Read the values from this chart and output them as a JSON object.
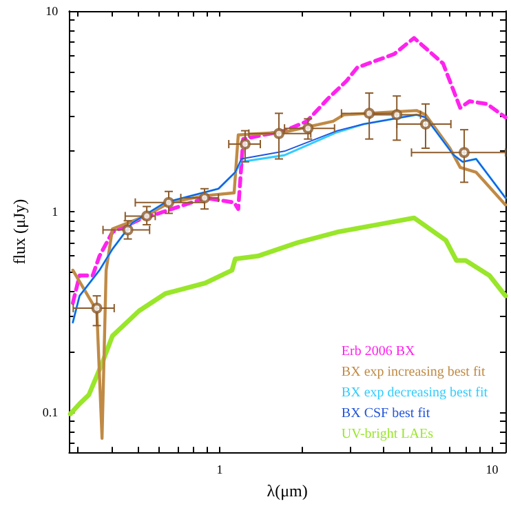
{
  "chart_data": {
    "type": "line",
    "xlabel": "λ(μm)",
    "ylabel": "flux (μJy)",
    "log": "xy",
    "grid": false,
    "legend": "bottom right",
    "xlim": [
      0.28,
      11.2
    ],
    "ylim": [
      0.063,
      10
    ],
    "xticks": [
      {
        "value": 0.3,
        "label": null
      },
      {
        "value": 0.4,
        "label": null
      },
      {
        "value": 0.5,
        "label": null
      },
      {
        "value": 0.6,
        "label": null
      },
      {
        "value": 0.7,
        "label": null
      },
      {
        "value": 0.8,
        "label": null
      },
      {
        "value": 0.9,
        "label": null
      },
      1,
      {
        "value": 2,
        "label": null
      },
      {
        "value": 3,
        "label": null
      },
      {
        "value": 4,
        "label": null
      },
      {
        "value": 5,
        "label": null
      },
      {
        "value": 6,
        "label": null
      },
      {
        "value": 7,
        "label": null
      },
      {
        "value": 8,
        "label": null
      },
      {
        "value": 9,
        "label": null
      },
      10
    ],
    "yticks": [
      {
        "value": 0.07,
        "label": null
      },
      {
        "value": 0.08,
        "label": null
      },
      {
        "value": 0.09,
        "label": null
      },
      0.1,
      {
        "value": 0.2,
        "label": null
      },
      {
        "value": 0.3,
        "label": null
      },
      {
        "value": 0.4,
        "label": null
      },
      {
        "value": 0.5,
        "label": null
      },
      {
        "value": 0.6,
        "label": null
      },
      {
        "value": 0.7,
        "label": null
      },
      {
        "value": 0.8,
        "label": null
      },
      {
        "value": 0.9,
        "label": null
      },
      1,
      {
        "value": 2,
        "label": null
      },
      {
        "value": 3,
        "label": null
      },
      {
        "value": 4,
        "label": null
      },
      {
        "value": 5,
        "label": null
      },
      {
        "value": 6,
        "label": null
      },
      {
        "value": 7,
        "label": null
      },
      {
        "value": 8,
        "label": null
      },
      {
        "value": 9,
        "label": null
      },
      10
    ],
    "series": [
      {
        "name": "UV-bright LAEs",
        "color": "#99e62a",
        "line_style": "solid",
        "x": [
          0.283,
          0.306,
          0.331,
          0.37,
          0.404,
          0.506,
          0.632,
          0.885,
          1.11,
          1.14,
          1.38,
          1.93,
          2.7,
          3.78,
          5.17,
          6.76,
          7.4,
          8.0,
          9.78,
          11.2
        ],
        "values": [
          0.098,
          0.11,
          0.122,
          0.175,
          0.24,
          0.32,
          0.39,
          0.44,
          0.51,
          0.58,
          0.6,
          0.7,
          0.79,
          0.86,
          0.93,
          0.72,
          0.57,
          0.57,
          0.48,
          0.38
        ]
      },
      {
        "name": "Erb 2006 BX",
        "color": "#ff22ee",
        "line_style": "dashed",
        "x": [
          0.289,
          0.306,
          0.342,
          0.362,
          0.404,
          0.506,
          0.668,
          0.885,
          1.13,
          1.17,
          1.22,
          1.73,
          2.09,
          2.5,
          2.92,
          3.2,
          4.37,
          5.17,
          6.61,
          7.64,
          8.27,
          9.57,
          11.2
        ],
        "values": [
          0.35,
          0.48,
          0.48,
          0.6,
          0.79,
          0.91,
          1.03,
          1.17,
          1.11,
          1.03,
          2.3,
          2.53,
          2.82,
          3.66,
          4.48,
          5.23,
          6.1,
          7.34,
          5.47,
          3.29,
          3.55,
          3.44,
          2.95
        ]
      },
      {
        "name": "BX exp increasing best fit",
        "color": "#c08a45",
        "line_style": "solid",
        "x": [
          0.289,
          0.354,
          0.37,
          0.383,
          0.404,
          0.535,
          0.654,
          0.885,
          1.13,
          1.17,
          1.73,
          2.61,
          2.86,
          5.28,
          5.7,
          7.0,
          7.64,
          8.74,
          11.2
        ],
        "values": [
          0.51,
          0.32,
          0.074,
          0.51,
          0.82,
          0.95,
          1.11,
          1.2,
          1.24,
          2.41,
          2.49,
          2.82,
          3.04,
          3.19,
          3.04,
          2.07,
          1.66,
          1.57,
          1.08
        ]
      },
      {
        "name": "BX exp decreasing best fit",
        "color": "#33ccff",
        "line_style": "solid",
        "x": [
          0.289,
          0.306,
          0.362,
          0.404,
          0.478,
          0.632,
          0.99,
          1.14,
          1.2,
          1.73,
          2.7,
          3.38,
          5.28,
          5.7,
          7.23,
          7.8,
          8.74,
          11.2
        ],
        "values": [
          0.28,
          0.38,
          0.51,
          0.65,
          0.88,
          1.11,
          1.3,
          1.57,
          1.77,
          1.91,
          2.49,
          2.73,
          3.04,
          2.95,
          1.91,
          1.77,
          1.83,
          1.17
        ]
      },
      {
        "name": "BX CSF best fit",
        "color": "#2255dd",
        "line_style": "solid",
        "x": [
          0.289,
          0.306,
          0.362,
          0.404,
          0.478,
          0.632,
          0.99,
          1.14,
          1.2,
          1.73,
          2.7,
          3.38,
          5.28,
          5.7,
          7.23,
          7.8,
          8.74,
          11.2
        ],
        "values": [
          0.28,
          0.38,
          0.51,
          0.65,
          0.88,
          1.11,
          1.3,
          1.57,
          1.83,
          2.0,
          2.53,
          2.73,
          3.04,
          2.95,
          1.91,
          1.77,
          1.83,
          1.17
        ]
      },
      {
        "type": "scatter",
        "color": "#8b5a2b",
        "marker": "circle",
        "x": [
          0.354,
          0.46,
          0.54,
          0.65,
          0.88,
          1.24,
          1.65,
          2.11,
          3.54,
          4.47,
          5.7,
          7.9
        ],
        "values": [
          0.33,
          0.81,
          0.95,
          1.11,
          1.17,
          2.17,
          2.45,
          2.6,
          3.09,
          3.04,
          2.73,
          1.97
        ],
        "errors": [
          [
            0.27,
            0.38
          ],
          [
            0.73,
            0.9
          ],
          [
            0.86,
            1.06
          ],
          [
            0.98,
            1.26
          ],
          [
            1.03,
            1.3
          ],
          [
            1.77,
            2.53
          ],
          [
            1.83,
            3.09
          ],
          [
            2.3,
            2.9
          ],
          [
            2.3,
            3.9
          ],
          [
            2.27,
            3.77
          ],
          [
            2.07,
            3.44
          ],
          [
            1.4,
            2.56
          ]
        ],
        "xerrors": [
          [
            0.29,
            0.41
          ],
          [
            0.373,
            0.553
          ],
          [
            0.45,
            0.58
          ],
          [
            0.49,
            0.88
          ],
          [
            0.72,
            0.99
          ],
          [
            1.08,
            1.41
          ],
          [
            1.28,
            2.16
          ],
          [
            1.73,
            2.64
          ],
          [
            2.8,
            4.47
          ],
          [
            3.57,
            5.46
          ],
          [
            4.47,
            7.06
          ],
          [
            5.06,
            11.2
          ]
        ]
      }
    ]
  }
}
